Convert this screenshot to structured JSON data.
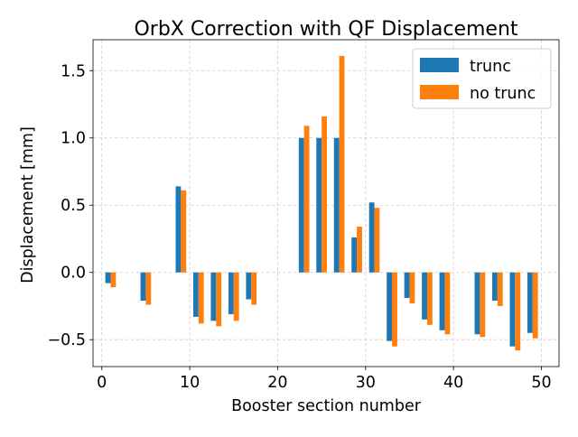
{
  "chart_data": {
    "type": "bar",
    "title": "OrbX Correction with QF Displacement",
    "xlabel": "Booster section number",
    "ylabel": "Displacement [mm]",
    "xlim": [
      -1,
      52
    ],
    "ylim": [
      -0.7,
      1.73
    ],
    "x_ticks": [
      0,
      10,
      20,
      30,
      40,
      50
    ],
    "y_ticks": [
      -0.5,
      0.0,
      0.5,
      1.0,
      1.5
    ],
    "y_tick_labels": [
      "−0.5",
      "0.0",
      "0.5",
      "1.0",
      "1.5"
    ],
    "grid": true,
    "legend_position": "upper right",
    "bar_width": 0.6,
    "x": [
      1,
      5,
      9,
      11,
      13,
      15,
      17,
      23,
      25,
      27,
      29,
      31,
      33,
      35,
      37,
      39,
      43,
      45,
      47,
      49
    ],
    "series": [
      {
        "name": "trunc",
        "color": "#1f77b4",
        "offset": -0.3,
        "values": [
          -0.08,
          -0.21,
          0.64,
          -0.33,
          -0.36,
          -0.31,
          -0.2,
          1.0,
          1.0,
          1.0,
          0.26,
          0.52,
          -0.51,
          -0.19,
          -0.35,
          -0.43,
          -0.46,
          -0.21,
          -0.55,
          -0.45
        ]
      },
      {
        "name": "no trunc",
        "color": "#ff7f0e",
        "offset": 0.3,
        "values": [
          -0.11,
          -0.24,
          0.61,
          -0.38,
          -0.4,
          -0.36,
          -0.24,
          1.09,
          1.16,
          1.61,
          0.34,
          0.48,
          -0.55,
          -0.23,
          -0.39,
          -0.46,
          -0.48,
          -0.25,
          -0.58,
          -0.49
        ]
      }
    ]
  }
}
